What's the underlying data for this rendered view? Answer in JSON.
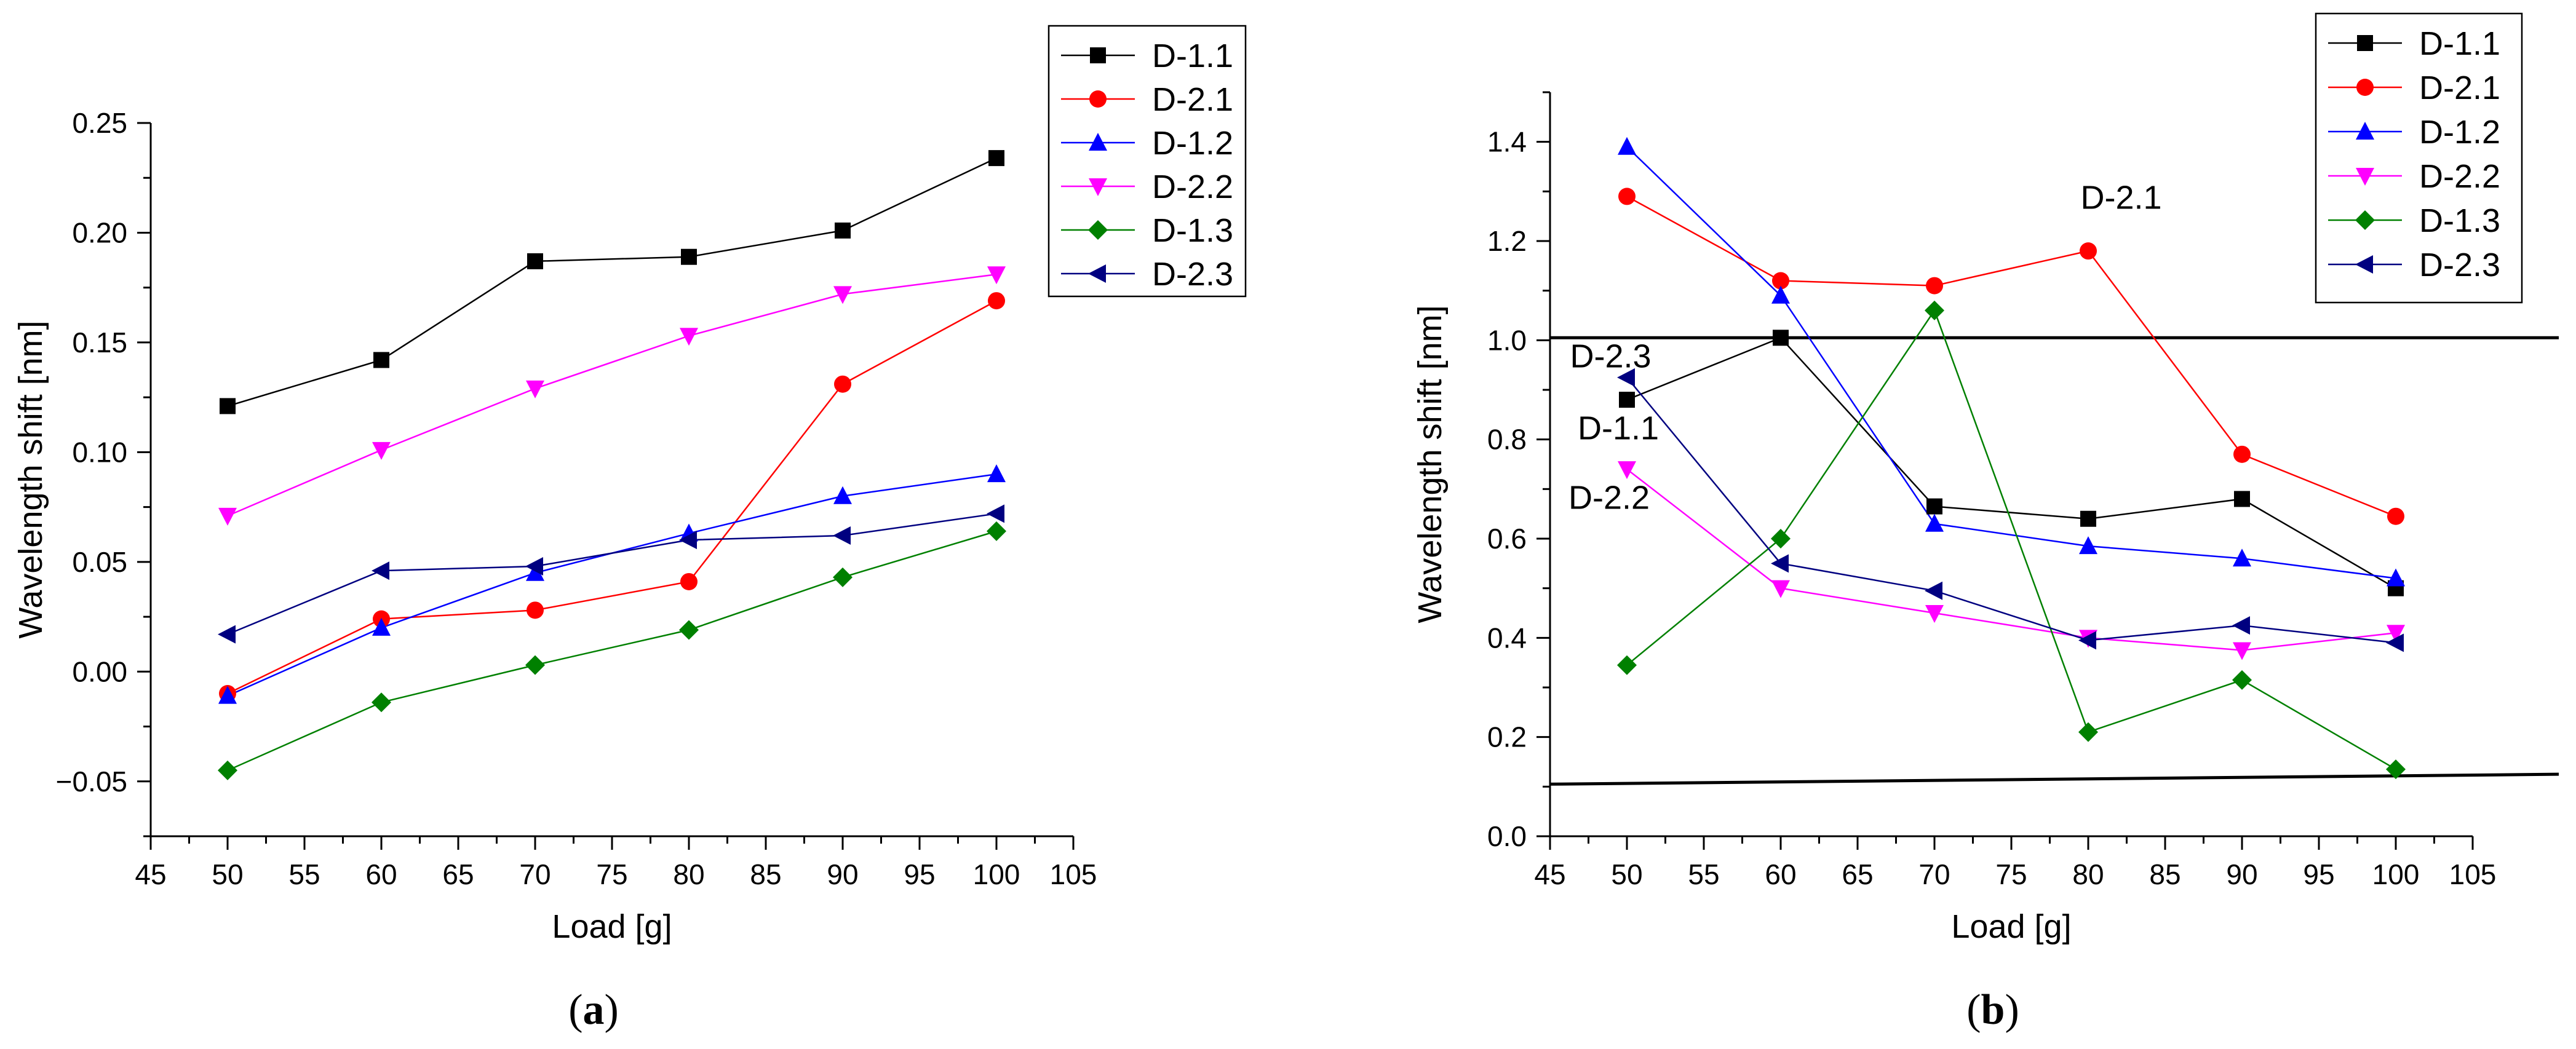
{
  "chart_data": [
    {
      "type": "line",
      "panel_label": "a",
      "title": "",
      "xlabel": "Load [g]",
      "ylabel": "Wavelength shift [nm]",
      "xlim": [
        45,
        105
      ],
      "ylim": [
        -0.075,
        0.25
      ],
      "x_ticks": [
        45,
        50,
        55,
        60,
        65,
        70,
        75,
        80,
        85,
        90,
        95,
        100,
        105
      ],
      "x_tick_labels": [
        "45",
        "50",
        "55",
        "60",
        "65",
        "70",
        "75",
        "80",
        "85",
        "90",
        "95",
        "100",
        "105"
      ],
      "y_ticks": [
        -0.05,
        0.0,
        0.05,
        0.1,
        0.15,
        0.2,
        0.25
      ],
      "y_tick_labels": [
        "−0.05",
        "0.00",
        "0.05",
        "0.10",
        "0.15",
        "0.20",
        "0.25"
      ],
      "grid": false,
      "legend_position": "top-right",
      "x": [
        50,
        60,
        70,
        80,
        90,
        100
      ],
      "series": [
        {
          "name": "D-1.1",
          "color": "#000000",
          "marker": "square",
          "values": [
            0.121,
            0.142,
            0.187,
            0.189,
            0.201,
            0.234
          ]
        },
        {
          "name": "D-2.1",
          "color": "#ff0000",
          "marker": "circle",
          "values": [
            -0.01,
            0.024,
            0.028,
            0.041,
            0.131,
            0.169
          ]
        },
        {
          "name": "D-1.2",
          "color": "#0000ff",
          "marker": "triangle-up",
          "values": [
            -0.011,
            0.02,
            0.045,
            0.063,
            0.08,
            0.09
          ]
        },
        {
          "name": "D-2.2",
          "color": "#ff00ff",
          "marker": "triangle-down",
          "values": [
            0.071,
            0.101,
            0.129,
            0.153,
            0.172,
            0.181
          ]
        },
        {
          "name": "D-1.3",
          "color": "#008000",
          "marker": "diamond",
          "values": [
            -0.045,
            -0.014,
            0.003,
            0.019,
            0.043,
            0.064
          ]
        },
        {
          "name": "D-2.3",
          "color": "#000080",
          "marker": "triangle-left",
          "values": [
            0.017,
            0.046,
            0.048,
            0.06,
            0.062,
            0.072
          ]
        }
      ],
      "reference_lines": [],
      "annotations": []
    },
    {
      "type": "line",
      "panel_label": "b",
      "title": "",
      "xlabel": "Load [g]",
      "ylabel": "Wavelength shift [nm]",
      "xlim": [
        45,
        105
      ],
      "ylim": [
        0.0,
        1.5
      ],
      "x_ticks": [
        45,
        50,
        55,
        60,
        65,
        70,
        75,
        80,
        85,
        90,
        95,
        100,
        105
      ],
      "x_tick_labels": [
        "45",
        "50",
        "55",
        "60",
        "65",
        "70",
        "75",
        "80",
        "85",
        "90",
        "95",
        "100",
        "105"
      ],
      "y_ticks": [
        0.0,
        0.2,
        0.4,
        0.6,
        0.8,
        1.0,
        1.2,
        1.4
      ],
      "y_tick_labels": [
        "0.0",
        "0.2",
        "0.4",
        "0.6",
        "0.8",
        "1.0",
        "1.2",
        "1.4"
      ],
      "grid": false,
      "legend_position": "top-right",
      "x": [
        50,
        60,
        70,
        80,
        90,
        100
      ],
      "series": [
        {
          "name": "D-1.1",
          "color": "#000000",
          "marker": "square",
          "values": [
            0.88,
            1.005,
            0.665,
            0.64,
            0.68,
            0.5
          ]
        },
        {
          "name": "D-2.1",
          "color": "#ff0000",
          "marker": "circle",
          "values": [
            1.29,
            1.12,
            1.11,
            1.18,
            0.77,
            0.645
          ]
        },
        {
          "name": "D-1.2",
          "color": "#0000ff",
          "marker": "triangle-up",
          "values": [
            1.39,
            1.09,
            0.63,
            0.585,
            0.56,
            0.52
          ]
        },
        {
          "name": "D-2.2",
          "color": "#ff00ff",
          "marker": "triangle-down",
          "values": [
            0.74,
            0.5,
            0.45,
            0.4,
            0.375,
            0.41
          ]
        },
        {
          "name": "D-1.3",
          "color": "#008000",
          "marker": "diamond",
          "values": [
            0.345,
            0.6,
            1.06,
            0.21,
            0.315,
            0.135
          ]
        },
        {
          "name": "D-2.3",
          "color": "#000080",
          "marker": "triangle-left",
          "values": [
            0.925,
            0.55,
            0.495,
            0.395,
            0.425,
            0.39
          ]
        }
      ],
      "reference_lines": [
        {
          "from": [
            45,
            1.005
          ],
          "to": [
            110.6,
            1.005
          ]
        },
        {
          "from": [
            45,
            0.105
          ],
          "to": [
            110.6,
            0.125
          ]
        }
      ],
      "annotations": [
        {
          "text": "D-2.1",
          "x": 79.5,
          "y": 1.265
        },
        {
          "text": "D-2.3",
          "x": 46.3,
          "y": 0.945
        },
        {
          "text": "D-1.1",
          "x": 46.8,
          "y": 0.8
        },
        {
          "text": "D-2.2",
          "x": 46.2,
          "y": 0.66
        }
      ]
    }
  ]
}
